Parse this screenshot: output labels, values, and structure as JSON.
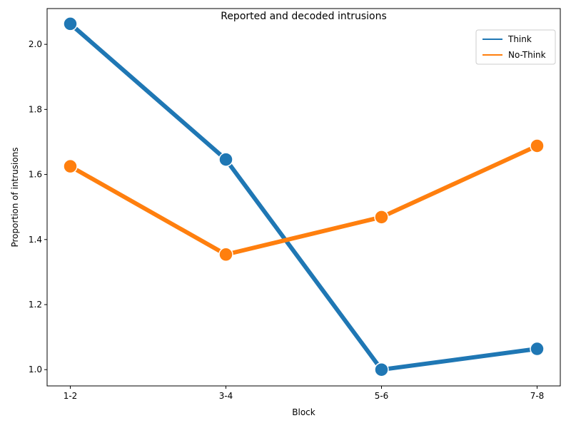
{
  "chart_data": {
    "type": "line",
    "title": "Reported and decoded intrusions",
    "xlabel": "Block",
    "ylabel": "Proportion of intrusions",
    "categories": [
      "1-2",
      "3-4",
      "5-6",
      "7-8"
    ],
    "ylim": [
      0.95,
      2.11
    ],
    "yticks": [
      1.0,
      1.2,
      1.4,
      1.6,
      1.8,
      2.0
    ],
    "ytick_labels": [
      "1.0",
      "1.2",
      "1.4",
      "1.6",
      "1.8",
      "2.0"
    ],
    "grid": false,
    "legend_position": "top-right",
    "series": [
      {
        "name": "Think",
        "color": "#1f77b4",
        "values": [
          2.063,
          1.646,
          1.0,
          1.064
        ]
      },
      {
        "name": "No-Think",
        "color": "#ff7f0e",
        "values": [
          1.625,
          1.354,
          1.469,
          1.688
        ]
      }
    ]
  }
}
